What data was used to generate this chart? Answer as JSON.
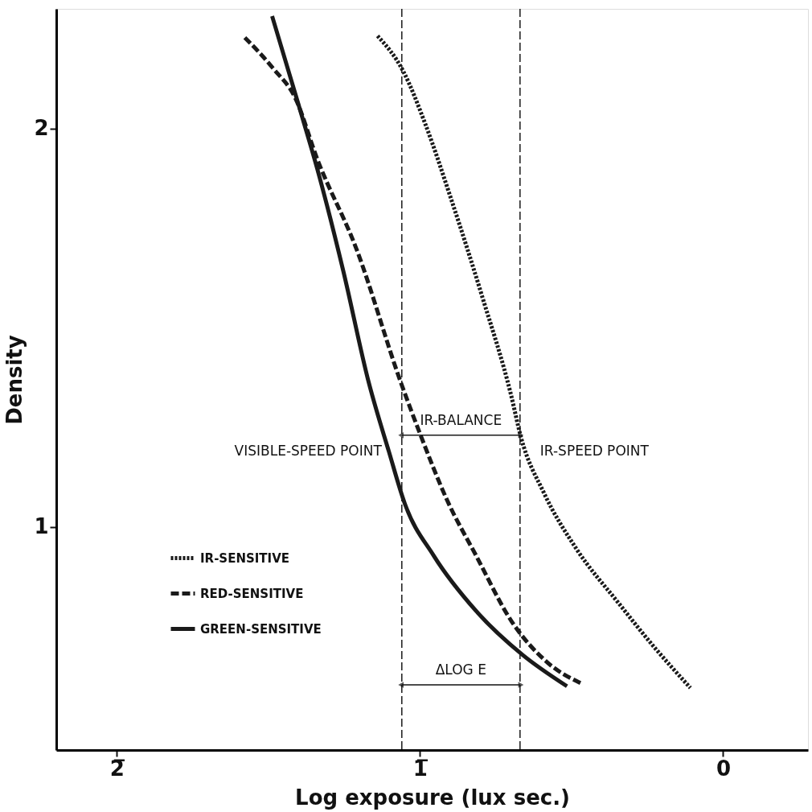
{
  "chart_data": {
    "type": "line",
    "xlabel": "Log exposure (lux sec.)",
    "ylabel": "Density",
    "xlim": [
      -2.2,
      0.28
    ],
    "ylim": [
      0.44,
      2.3
    ],
    "xticks": [
      {
        "value": -2,
        "label": "2̅"
      },
      {
        "value": -1,
        "label": "1̅"
      },
      0
    ],
    "yticks": [
      1,
      2
    ],
    "grid": false,
    "legend": "bottom left",
    "marker": "none",
    "series": [
      {
        "name": "IR-SENSITIVE",
        "color": "#1a1a1a",
        "line_style": "dotted",
        "x": [
          -1.14,
          -1.055,
          -0.982,
          -0.897,
          -0.794,
          -0.699,
          -0.668,
          -0.591,
          -0.485,
          -0.343,
          -0.227,
          -0.108
        ],
        "values": [
          2.232,
          2.143,
          2.01,
          1.822,
          1.576,
          1.329,
          1.228,
          1.085,
          0.946,
          0.807,
          0.698,
          0.596
        ]
      },
      {
        "name": "RED-SENSITIVE",
        "color": "#1a1a1a",
        "line_style": "dashed",
        "x": [
          -1.578,
          -1.485,
          -1.412,
          -1.338,
          -1.211,
          -1.063,
          -0.997,
          -0.91,
          -0.815,
          -0.697,
          -0.58,
          -0.462
        ],
        "values": [
          2.228,
          2.151,
          2.077,
          1.921,
          1.7,
          1.362,
          1.228,
          1.066,
          0.928,
          0.762,
          0.66,
          0.605
        ]
      },
      {
        "name": "GREEN-SENSITIVE",
        "color": "#1a1a1a",
        "line_style": "solid",
        "x": [
          -1.488,
          -1.401,
          -1.338,
          -1.253,
          -1.169,
          -1.103,
          -1.05,
          -0.955,
          -0.815,
          -0.662,
          -0.515
        ],
        "values": [
          2.282,
          2.06,
          1.896,
          1.642,
          1.362,
          1.19,
          1.058,
          0.928,
          0.789,
          0.679,
          0.6
        ]
      },
      {
        "type": "line",
        "color": "#1a1a1a",
        "line_style": "solid",
        "marker": "triangle",
        "x": [
          -1.06,
          -0.67
        ],
        "values": [
          1.23,
          1.23
        ]
      }
    ],
    "ref_lines": [
      {
        "axis": "x",
        "value": -1.06,
        "line_style": "dashed",
        "color": "#1a1a1a"
      },
      {
        "axis": "x",
        "value": -0.67,
        "line_style": "dashed",
        "color": "#1a1a1a"
      }
    ],
    "annotations": [
      {
        "text": "VISIBLE-SPEED POINT",
        "x": -1.06,
        "y": 1.23
      },
      {
        "text": "IR-SPEED POINT",
        "x": -0.67,
        "y": 1.23
      },
      "IR-BALANCE",
      "ΔLOG E"
    ]
  }
}
